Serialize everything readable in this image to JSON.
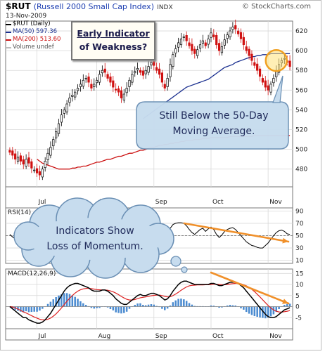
{
  "header": {
    "symbol": "$RUT",
    "name": "(Russell 2000 Small Cap Index)",
    "exchange": "INDX",
    "date": "13-Nov-2009",
    "brand": "© StockCharts.com"
  },
  "legend": {
    "price": "$RUT (Daily)",
    "ma50": "MA(50) 597.36",
    "ma200": "MA(200) 513.60",
    "volume": "Volume undef"
  },
  "annotations": {
    "box_line1": "Early Indicator",
    "box_line2": "of Weakness?",
    "bubble1_line1": "Still Below the 50-Day",
    "bubble1_line2": "Moving Average.",
    "bubble2_line1": "Indicators Show",
    "bubble2_line2": "Loss of Momentum."
  },
  "colors": {
    "ma50": "#1a2f8f",
    "ma200": "#cc1111",
    "up": "#000000",
    "down": "#d01010",
    "rsi": "#000000",
    "macd": "#000000",
    "signal": "#dd2222",
    "hist": "#2c77c8",
    "trend": "#f0902a"
  },
  "chart_data": [
    {
      "type": "candlestick",
      "title": "$RUT (Russell 2000 Small Cap Index)",
      "ylim": [
        462,
        630
      ],
      "yticks": [
        480,
        500,
        520,
        540,
        560,
        580,
        600,
        620
      ],
      "xtick_labels": [
        "Jul",
        "Aug",
        "Sep",
        "Oct",
        "Nov"
      ],
      "close": [
        497,
        494,
        490,
        492,
        488,
        485,
        490,
        486,
        481,
        479,
        476,
        474,
        480,
        488,
        496,
        502,
        510,
        518,
        526,
        535,
        540,
        546,
        552,
        555,
        558,
        562,
        566,
        570,
        572,
        568,
        562,
        566,
        570,
        576,
        580,
        578,
        572,
        568,
        563,
        560,
        558,
        552,
        556,
        562,
        570,
        576,
        579,
        582,
        578,
        575,
        580,
        584,
        588,
        585,
        580,
        576,
        568,
        562,
        572,
        586,
        596,
        602,
        608,
        612,
        614,
        610,
        605,
        600,
        597,
        601,
        606,
        610,
        605,
        612,
        618,
        614,
        606,
        600,
        604,
        611,
        616,
        620,
        624,
        622,
        617,
        612,
        606,
        600,
        595,
        590,
        585,
        580,
        574,
        568,
        563,
        560,
        566,
        572,
        580,
        586,
        590,
        592,
        588,
        584
      ],
      "ma50": [
        null,
        null,
        null,
        null,
        null,
        null,
        null,
        null,
        null,
        null,
        null,
        null,
        null,
        null,
        null,
        null,
        null,
        null,
        null,
        null,
        null,
        null,
        null,
        null,
        null,
        null,
        null,
        null,
        null,
        null,
        null,
        null,
        null,
        null,
        null,
        null,
        null,
        null,
        null,
        null,
        null,
        null,
        null,
        null,
        null,
        null,
        null,
        null,
        null,
        531,
        533,
        535,
        537,
        539,
        541,
        543,
        545,
        547,
        549,
        551,
        553,
        555,
        557,
        559,
        561,
        563,
        564,
        565,
        566,
        567,
        568,
        569,
        570,
        571,
        573,
        575,
        577,
        579,
        581,
        583,
        584,
        585,
        586,
        588,
        589,
        590,
        591,
        592,
        593,
        594,
        594,
        595,
        595,
        596,
        596,
        596,
        597,
        597,
        597,
        597,
        597,
        597,
        597,
        597
      ],
      "ma200": [
        null,
        null,
        null,
        null,
        null,
        null,
        null,
        null,
        null,
        null,
        490,
        488,
        486,
        485,
        484,
        483,
        482,
        481,
        480,
        480,
        480,
        480,
        480,
        481,
        481,
        482,
        482,
        483,
        483,
        484,
        485,
        486,
        487,
        487,
        488,
        489,
        490,
        490,
        491,
        492,
        493,
        493,
        494,
        495,
        496,
        496,
        497,
        498,
        499,
        499,
        500,
        501,
        502,
        502,
        503,
        504,
        504,
        505,
        505,
        506,
        506,
        507,
        507,
        508,
        508,
        509,
        509,
        509,
        510,
        510,
        510,
        511,
        511,
        511,
        512,
        512,
        512,
        512,
        512,
        512,
        512,
        513,
        513,
        513,
        513,
        513,
        513,
        513,
        513,
        513,
        514,
        514,
        514,
        514,
        514,
        514,
        514,
        514,
        514,
        514,
        514,
        514,
        514,
        514
      ]
    },
    {
      "type": "line",
      "title": "RSI(14)",
      "ylim": [
        5,
        95
      ],
      "yticks": [
        10,
        30,
        50,
        70,
        90
      ],
      "rsi": [
        52,
        48,
        45,
        44,
        41,
        38,
        43,
        40,
        36,
        35,
        34,
        34,
        40,
        50,
        58,
        62,
        66,
        70,
        72,
        74,
        72,
        71,
        70,
        69,
        68,
        68,
        67,
        66,
        64,
        60,
        54,
        57,
        60,
        63,
        65,
        62,
        56,
        52,
        48,
        45,
        42,
        38,
        42,
        47,
        54,
        58,
        60,
        62,
        56,
        53,
        57,
        61,
        63,
        60,
        55,
        52,
        45,
        40,
        50,
        62,
        68,
        70,
        71,
        71,
        70,
        66,
        60,
        55,
        52,
        56,
        60,
        62,
        57,
        61,
        64,
        60,
        52,
        47,
        51,
        57,
        60,
        62,
        63,
        60,
        55,
        50,
        45,
        40,
        37,
        34,
        33,
        31,
        30,
        30,
        34,
        38,
        44,
        50,
        55,
        58,
        59,
        57,
        53,
        52
      ]
    },
    {
      "type": "line",
      "title": "MACD(12,26,9)",
      "ylim": [
        -10,
        17
      ],
      "yticks": [
        -5,
        0,
        5,
        10,
        15
      ],
      "macd": [
        0,
        -1,
        -2,
        -3,
        -4,
        -5,
        -5,
        -6,
        -6.5,
        -7,
        -7.5,
        -7.5,
        -7,
        -6,
        -4.5,
        -3,
        -1,
        1,
        3,
        5,
        7,
        8.5,
        9.5,
        10,
        10.5,
        10.5,
        10,
        9.5,
        9,
        8.5,
        7.5,
        7,
        7,
        7,
        7.5,
        7.5,
        7,
        6,
        5,
        3.5,
        2.5,
        1.5,
        1,
        1,
        2,
        3,
        4,
        5,
        5.5,
        5,
        5,
        5.5,
        6,
        6,
        5.5,
        5,
        4,
        3,
        3.5,
        5,
        7,
        8.5,
        10,
        11,
        11.5,
        11.5,
        11,
        10.5,
        10,
        10,
        10,
        10,
        10,
        10,
        10.5,
        10.5,
        10,
        9.5,
        9.5,
        10,
        10.5,
        11,
        11,
        11,
        10.5,
        9.5,
        8.5,
        7,
        5.5,
        4,
        2.5,
        1,
        -0.5,
        -2,
        -3.5,
        -4.5,
        -5,
        -5,
        -4.5,
        -3.5,
        -2.5,
        -1.5,
        -1,
        -0.5
      ],
      "signal": [
        0,
        -0.2,
        -0.6,
        -1.1,
        -1.7,
        -2.4,
        -2.9,
        -3.5,
        -4.1,
        -4.7,
        -5.2,
        -5.7,
        -6,
        -6,
        -5.7,
        -5.2,
        -4.3,
        -3.3,
        -2,
        -0.6,
        0.9,
        2.4,
        3.8,
        5,
        6.1,
        7,
        7.6,
        8,
        8.2,
        8.3,
        8.1,
        7.9,
        7.7,
        7.6,
        7.5,
        7.5,
        7.4,
        7.1,
        6.7,
        6.1,
        5.4,
        4.6,
        3.9,
        3.3,
        3,
        3,
        3.2,
        3.6,
        4,
        4.2,
        4.4,
        4.6,
        4.9,
        5.1,
        5.2,
        5.2,
        5,
        4.6,
        4.4,
        4.5,
        5,
        5.7,
        6.5,
        7.4,
        8.2,
        8.9,
        9.4,
        9.6,
        9.7,
        9.8,
        9.8,
        9.8,
        9.9,
        9.9,
        10,
        10.1,
        10.1,
        10,
        9.9,
        9.9,
        10,
        10.2,
        10.4,
        10.5,
        10.5,
        10.3,
        9.9,
        9.4,
        8.7,
        7.8,
        6.8,
        5.6,
        4.4,
        3.1,
        1.8,
        0.5,
        -0.6,
        -1.5,
        -2.1,
        -2.4,
        -2.5,
        -2.3,
        -2.1,
        -1.8
      ]
    }
  ]
}
